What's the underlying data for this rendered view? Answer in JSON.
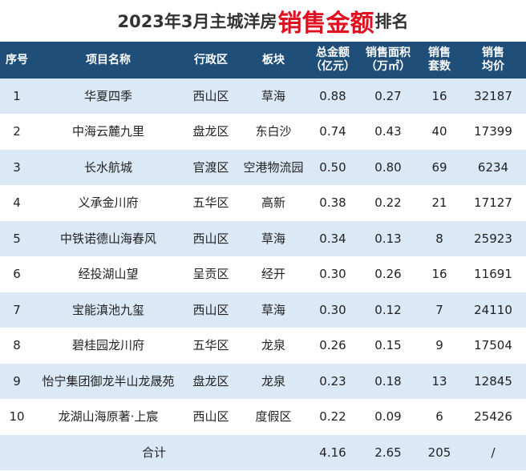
{
  "title": {
    "prefix": "2023年3月主城洋房",
    "highlight": "销售金额",
    "suffix": "排名"
  },
  "headers": {
    "rank": "序号",
    "project": "项目名称",
    "district": "行政区",
    "area": "板块",
    "amount": [
      "总金额",
      "（亿元）"
    ],
    "floor_area": [
      "销售面积",
      "（万㎡）"
    ],
    "units": [
      "销售",
      "套数"
    ],
    "avg_price": [
      "销售",
      "均价"
    ]
  },
  "rows": [
    {
      "rank": "1",
      "project": "华夏四季",
      "district": "西山区",
      "area": "草海",
      "amount": "0.88",
      "floor_area": "0.27",
      "units": "16",
      "avg_price": "32187"
    },
    {
      "rank": "2",
      "project": "中海云麓九里",
      "district": "盘龙区",
      "area": "东白沙",
      "amount": "0.74",
      "floor_area": "0.43",
      "units": "40",
      "avg_price": "17399"
    },
    {
      "rank": "3",
      "project": "长水航城",
      "district": "官渡区",
      "area": "空港物流园",
      "amount": "0.50",
      "floor_area": "0.80",
      "units": "69",
      "avg_price": "6234"
    },
    {
      "rank": "4",
      "project": "义承金川府",
      "district": "五华区",
      "area": "高新",
      "amount": "0.38",
      "floor_area": "0.22",
      "units": "21",
      "avg_price": "17127"
    },
    {
      "rank": "5",
      "project": "中铁诺德山海春风",
      "district": "西山区",
      "area": "草海",
      "amount": "0.34",
      "floor_area": "0.13",
      "units": "8",
      "avg_price": "25923"
    },
    {
      "rank": "6",
      "project": "经投湖山望",
      "district": "呈贡区",
      "area": "经开",
      "amount": "0.30",
      "floor_area": "0.26",
      "units": "16",
      "avg_price": "11691"
    },
    {
      "rank": "7",
      "project": "宝能滇池九玺",
      "district": "西山区",
      "area": "草海",
      "amount": "0.30",
      "floor_area": "0.12",
      "units": "7",
      "avg_price": "24110"
    },
    {
      "rank": "8",
      "project": "碧桂园龙川府",
      "district": "五华区",
      "area": "龙泉",
      "amount": "0.26",
      "floor_area": "0.15",
      "units": "9",
      "avg_price": "17504"
    },
    {
      "rank": "9",
      "project": "怡宁集团御龙半山龙晟苑",
      "district": "盘龙区",
      "area": "龙泉",
      "amount": "0.23",
      "floor_area": "0.18",
      "units": "13",
      "avg_price": "12845"
    },
    {
      "rank": "10",
      "project": "龙湖山海原著·上宸",
      "district": "西山区",
      "area": "度假区",
      "amount": "0.22",
      "floor_area": "0.09",
      "units": "6",
      "avg_price": "25426"
    }
  ],
  "total": {
    "label": "合计",
    "amount": "4.16",
    "floor_area": "2.65",
    "units": "205",
    "avg_price": "/"
  },
  "colors": {
    "header_bg": "#1f4e79",
    "stripe_bg": "#dbe8f6",
    "highlight": "#e01020"
  }
}
